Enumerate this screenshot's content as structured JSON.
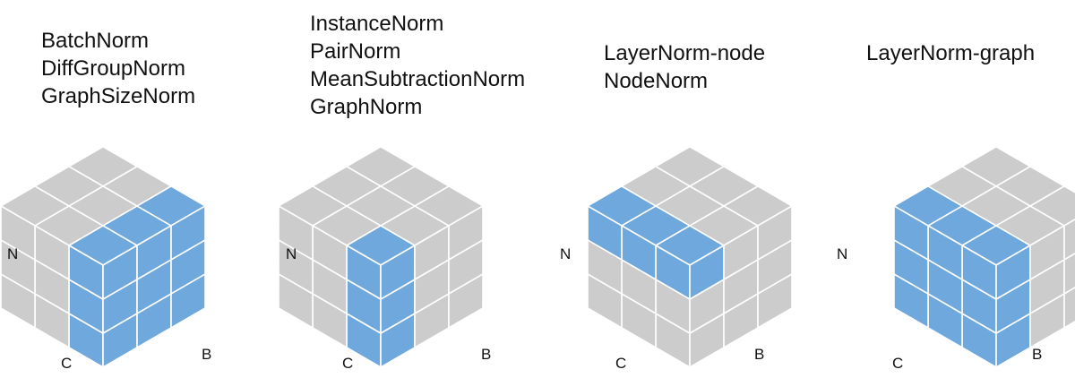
{
  "colors": {
    "highlight": "#6fa8dc",
    "base": "#cccccc",
    "grid_line": "#ffffff",
    "text": "#111111"
  },
  "cube_dims": {
    "n": 3,
    "c": 3,
    "b": 3
  },
  "panels": [
    {
      "name": "batch-type",
      "methods": [
        "BatchNorm",
        "DiffGroupNorm",
        "GraphSizeNorm"
      ],
      "axes": {
        "n": "N",
        "c": "C",
        "b": "B"
      },
      "highlight": {
        "c": [
          0
        ],
        "b": [
          0,
          1,
          2
        ],
        "n": [
          0,
          1,
          2
        ]
      }
    },
    {
      "name": "instance-type",
      "methods": [
        "InstanceNorm",
        "PairNorm",
        "MeanSubtractionNorm",
        "GraphNorm"
      ],
      "axes": {
        "n": "N",
        "c": "C",
        "b": "B"
      },
      "highlight": {
        "c": [
          0
        ],
        "b": [
          0
        ],
        "n": [
          0,
          1,
          2
        ]
      }
    },
    {
      "name": "layer-node-type",
      "methods": [
        "LayerNorm-node",
        "NodeNorm"
      ],
      "axes": {
        "n": "N",
        "c": "C",
        "b": "B"
      },
      "highlight": {
        "c": [
          0,
          1,
          2
        ],
        "b": [
          0
        ],
        "n": [
          2
        ]
      }
    },
    {
      "name": "layer-graph-type",
      "methods": [
        "LayerNorm-graph"
      ],
      "axes": {
        "n": "N",
        "c": "C",
        "b": "B"
      },
      "highlight": {
        "c": [
          0,
          1,
          2
        ],
        "b": [
          0
        ],
        "n": [
          0,
          1,
          2
        ]
      }
    }
  ]
}
